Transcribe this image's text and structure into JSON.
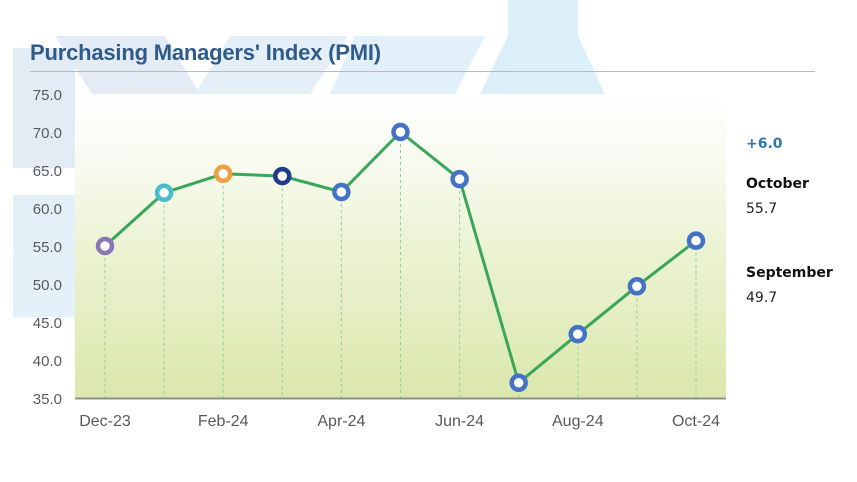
{
  "header": {
    "title": "Purchasing Managers' Index (PMI)"
  },
  "side_panel": {
    "change_label": "+6.0",
    "current": {
      "month": "October",
      "value": "55.7"
    },
    "previous": {
      "month": "September",
      "value": "49.7"
    }
  },
  "colors": {
    "title": "#2f5a8c",
    "line": "#3aa65a",
    "delta": "#2e75b6",
    "marker_default": "#4472c4",
    "plot_bg_top": "#ffffff",
    "plot_bg_bottom": "#dde8b0",
    "watermark": "#d6ecf7"
  },
  "chart_data": {
    "type": "line",
    "title": "Purchasing Managers' Index (PMI)",
    "xlabel": "",
    "ylabel": "",
    "ylim": [
      35,
      75
    ],
    "yticks": [
      "75.0",
      "70.0",
      "65.0",
      "60.0",
      "55.0",
      "50.0",
      "45.0",
      "40.0",
      "35.0"
    ],
    "x": [
      "Dec-23",
      "Jan-24",
      "Feb-24",
      "Mar-24",
      "Apr-24",
      "May-24",
      "Jun-24",
      "Jul-24",
      "Aug-24",
      "Sep-24",
      "Oct-24"
    ],
    "xtick_labels": [
      "Dec-23",
      "Feb-24",
      "Apr-24",
      "Jun-24",
      "Aug-24",
      "Oct-24"
    ],
    "series": [
      {
        "name": "PMI",
        "values": [
          55.0,
          62.0,
          64.5,
          64.2,
          62.1,
          70.0,
          63.8,
          37.0,
          43.4,
          49.7,
          55.7
        ],
        "marker_colors": [
          "#8a78b4",
          "#4bbcc8",
          "#f0a040",
          "#1f3c8c",
          "#4472c4",
          "#4472c4",
          "#4472c4",
          "#4472c4",
          "#4472c4",
          "#4472c4",
          "#4472c4"
        ]
      }
    ],
    "grid": false,
    "drop_lines": true,
    "legend": "none",
    "annotations": [
      {
        "text": "+6.0"
      },
      {
        "text": "October 55.7"
      },
      {
        "text": "September 49.7"
      }
    ]
  }
}
